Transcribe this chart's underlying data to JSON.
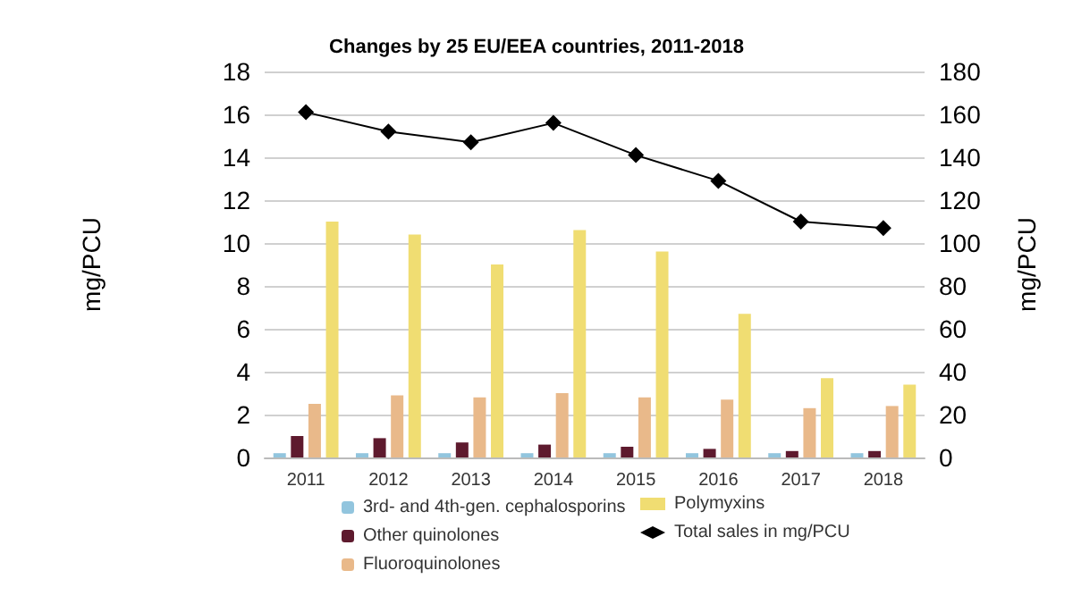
{
  "chart_data": {
    "type": "bar",
    "title": "Changes by 25 EU/EEA countries, 2011-2018",
    "ylabel": "mg/PCU",
    "y2label": "mg/PCU",
    "categories": [
      "2011",
      "2012",
      "2013",
      "2014",
      "2015",
      "2016",
      "2017",
      "2018"
    ],
    "series": [
      {
        "name": "3rd- and 4th-gen. cephalosporins",
        "color": "#92c5de",
        "values": [
          0.2,
          0.2,
          0.2,
          0.2,
          0.2,
          0.2,
          0.2,
          0.2
        ]
      },
      {
        "name": "Other quinolones",
        "color": "#5e1a2e",
        "values": [
          1.0,
          0.9,
          0.7,
          0.6,
          0.5,
          0.4,
          0.3,
          0.3
        ]
      },
      {
        "name": "Fluoroquinolones",
        "color": "#e9b98a",
        "values": [
          2.5,
          2.9,
          2.8,
          3.0,
          2.8,
          2.7,
          2.3,
          2.4
        ]
      },
      {
        "name": "Polymyxins",
        "color": "#f0dd72",
        "values": [
          11.0,
          10.4,
          9.0,
          10.6,
          9.6,
          6.7,
          3.7,
          3.4
        ]
      },
      {
        "name": "Total sales in mg/PCU",
        "type": "line",
        "axis": "y2",
        "color": "#000000",
        "marker": "diamond",
        "values": [
          161,
          152,
          147,
          156,
          141,
          129,
          110,
          107
        ]
      }
    ],
    "ylim": [
      0,
      18
    ],
    "yticks": [
      0,
      2,
      4,
      6,
      8,
      10,
      12,
      14,
      16,
      18
    ],
    "y2lim": [
      0,
      180
    ],
    "y2ticks": [
      0,
      20,
      40,
      60,
      80,
      100,
      120,
      140,
      160,
      180
    ],
    "grid": "y",
    "legend": "bottom"
  }
}
